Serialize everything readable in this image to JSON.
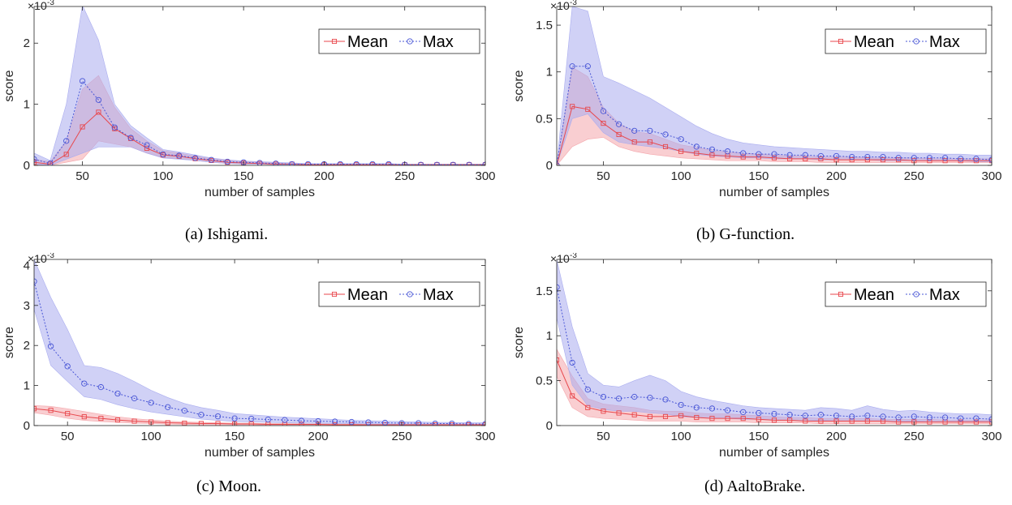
{
  "chart_data": [
    {
      "type": "line",
      "caption": "(a) Ishigami.",
      "xlabel": "number of samples",
      "ylabel": "score",
      "yscale_label": "×10",
      "yscale_exp": "-3",
      "xlim": [
        20,
        300
      ],
      "ylim": [
        0,
        2.6
      ],
      "xticks": [
        50,
        100,
        150,
        200,
        250,
        300
      ],
      "yticks": [
        0,
        1,
        2
      ],
      "ytick_labels": [
        "0",
        "1",
        "2"
      ],
      "legend_position": "top-right",
      "x": [
        20,
        30,
        40,
        50,
        60,
        70,
        80,
        90,
        100,
        110,
        120,
        130,
        140,
        150,
        160,
        170,
        180,
        190,
        200,
        210,
        220,
        230,
        240,
        250,
        260,
        270,
        280,
        290,
        300
      ],
      "series": [
        {
          "name": "Mean",
          "color": "#e8474c",
          "band": "#f4a6ab",
          "marker": "square",
          "dash": "",
          "values": [
            0.05,
            0.02,
            0.18,
            0.63,
            0.87,
            0.6,
            0.44,
            0.28,
            0.17,
            0.15,
            0.11,
            0.08,
            0.05,
            0.04,
            0.03,
            0.02,
            0.02,
            0.01,
            0.01,
            0.01,
            0.01,
            0.01,
            0.01,
            0.01,
            0.01,
            0.01,
            0.01,
            0.01,
            0.01
          ],
          "lower": [
            0.01,
            0.0,
            0.05,
            0.1,
            0.4,
            0.35,
            0.3,
            0.2,
            0.13,
            0.11,
            0.08,
            0.05,
            0.03,
            0.02,
            0.02,
            0.01,
            0.01,
            0.0,
            0.0,
            0.0,
            0.0,
            0.0,
            0.0,
            0.0,
            0.0,
            0.0,
            0.0,
            0.0,
            0.0
          ],
          "upper": [
            0.1,
            0.06,
            0.4,
            1.25,
            1.47,
            0.95,
            0.6,
            0.4,
            0.24,
            0.2,
            0.15,
            0.11,
            0.08,
            0.06,
            0.05,
            0.04,
            0.03,
            0.02,
            0.02,
            0.02,
            0.02,
            0.02,
            0.02,
            0.02,
            0.02,
            0.02,
            0.02,
            0.02,
            0.02
          ]
        },
        {
          "name": "Max",
          "color": "#4a57d6",
          "band": "#a9acef",
          "marker": "circle",
          "dash": "2,2",
          "values": [
            0.1,
            0.03,
            0.4,
            1.38,
            1.07,
            0.62,
            0.45,
            0.33,
            0.18,
            0.16,
            0.12,
            0.09,
            0.06,
            0.05,
            0.04,
            0.03,
            0.02,
            0.02,
            0.02,
            0.02,
            0.02,
            0.02,
            0.02,
            0.01,
            0.01,
            0.01,
            0.01,
            0.01,
            0.01
          ],
          "lower": [
            0.02,
            0.0,
            0.1,
            0.2,
            0.3,
            0.3,
            0.3,
            0.2,
            0.12,
            0.1,
            0.08,
            0.05,
            0.03,
            0.02,
            0.02,
            0.01,
            0.01,
            0.01,
            0.0,
            0.0,
            0.0,
            0.0,
            0.0,
            0.0,
            0.0,
            0.0,
            0.0,
            0.0,
            0.0
          ],
          "upper": [
            0.2,
            0.08,
            1.0,
            2.62,
            2.05,
            1.0,
            0.65,
            0.45,
            0.26,
            0.22,
            0.17,
            0.12,
            0.09,
            0.07,
            0.06,
            0.05,
            0.04,
            0.03,
            0.03,
            0.03,
            0.03,
            0.03,
            0.03,
            0.02,
            0.02,
            0.02,
            0.02,
            0.02,
            0.02
          ]
        }
      ]
    },
    {
      "type": "line",
      "caption": "(b) G-function.",
      "xlabel": "number of samples",
      "ylabel": "score",
      "yscale_label": "×10",
      "yscale_exp": "-3",
      "xlim": [
        20,
        300
      ],
      "ylim": [
        0,
        1.7
      ],
      "xticks": [
        50,
        100,
        150,
        200,
        250,
        300
      ],
      "yticks": [
        0,
        0.5,
        1,
        1.5
      ],
      "ytick_labels": [
        "0",
        "0.5",
        "1",
        "1.5"
      ],
      "legend_position": "top-right",
      "x": [
        20,
        30,
        40,
        50,
        60,
        70,
        80,
        90,
        100,
        110,
        120,
        130,
        140,
        150,
        160,
        170,
        180,
        190,
        200,
        210,
        220,
        230,
        240,
        250,
        260,
        270,
        280,
        290,
        300
      ],
      "series": [
        {
          "name": "Mean",
          "color": "#e8474c",
          "band": "#f4a6ab",
          "marker": "square",
          "dash": "",
          "values": [
            0.0,
            0.63,
            0.6,
            0.45,
            0.33,
            0.25,
            0.25,
            0.2,
            0.15,
            0.13,
            0.11,
            0.1,
            0.09,
            0.09,
            0.08,
            0.07,
            0.07,
            0.07,
            0.06,
            0.06,
            0.06,
            0.06,
            0.06,
            0.05,
            0.05,
            0.05,
            0.05,
            0.05,
            0.05
          ],
          "lower": [
            0.0,
            0.2,
            0.28,
            0.3,
            0.2,
            0.15,
            0.12,
            0.1,
            0.08,
            0.07,
            0.06,
            0.05,
            0.05,
            0.05,
            0.04,
            0.04,
            0.04,
            0.03,
            0.03,
            0.03,
            0.03,
            0.03,
            0.03,
            0.03,
            0.03,
            0.03,
            0.03,
            0.03,
            0.03
          ],
          "upper": [
            0.0,
            1.05,
            0.95,
            0.62,
            0.45,
            0.36,
            0.34,
            0.28,
            0.22,
            0.19,
            0.16,
            0.14,
            0.13,
            0.12,
            0.11,
            0.1,
            0.1,
            0.09,
            0.09,
            0.09,
            0.08,
            0.08,
            0.08,
            0.08,
            0.07,
            0.07,
            0.07,
            0.07,
            0.07
          ]
        },
        {
          "name": "Max",
          "color": "#4a57d6",
          "band": "#a9acef",
          "marker": "circle",
          "dash": "2,2",
          "values": [
            0.0,
            1.06,
            1.06,
            0.58,
            0.44,
            0.37,
            0.37,
            0.33,
            0.28,
            0.2,
            0.17,
            0.15,
            0.13,
            0.12,
            0.12,
            0.11,
            0.11,
            0.1,
            0.1,
            0.09,
            0.09,
            0.09,
            0.08,
            0.08,
            0.08,
            0.08,
            0.07,
            0.07,
            0.06
          ],
          "lower": [
            0.0,
            0.5,
            0.55,
            0.35,
            0.25,
            0.22,
            0.2,
            0.18,
            0.15,
            0.12,
            0.1,
            0.09,
            0.08,
            0.08,
            0.07,
            0.07,
            0.07,
            0.06,
            0.06,
            0.06,
            0.06,
            0.05,
            0.05,
            0.05,
            0.05,
            0.05,
            0.05,
            0.04,
            0.04
          ],
          "upper": [
            0.0,
            1.7,
            1.65,
            0.95,
            0.88,
            0.8,
            0.72,
            0.62,
            0.52,
            0.42,
            0.34,
            0.28,
            0.24,
            0.22,
            0.2,
            0.19,
            0.18,
            0.17,
            0.16,
            0.15,
            0.15,
            0.14,
            0.14,
            0.13,
            0.13,
            0.12,
            0.12,
            0.11,
            0.11
          ]
        }
      ]
    },
    {
      "type": "line",
      "caption": "(c) Moon.",
      "xlabel": "number of samples",
      "ylabel": "score",
      "yscale_label": "×10",
      "yscale_exp": "-3",
      "xlim": [
        30,
        300
      ],
      "ylim": [
        0,
        4.15
      ],
      "xticks": [
        50,
        100,
        150,
        200,
        250,
        300
      ],
      "yticks": [
        0,
        1,
        2,
        3,
        4
      ],
      "ytick_labels": [
        "0",
        "1",
        "2",
        "3",
        "4"
      ],
      "legend_position": "top-right",
      "x": [
        30,
        40,
        50,
        60,
        70,
        80,
        90,
        100,
        110,
        120,
        130,
        140,
        150,
        160,
        170,
        180,
        190,
        200,
        210,
        220,
        230,
        240,
        250,
        260,
        270,
        280,
        290,
        300
      ],
      "series": [
        {
          "name": "Mean",
          "color": "#e8474c",
          "band": "#f4a6ab",
          "marker": "square",
          "dash": "",
          "values": [
            0.42,
            0.38,
            0.3,
            0.22,
            0.18,
            0.14,
            0.11,
            0.09,
            0.07,
            0.06,
            0.05,
            0.05,
            0.04,
            0.04,
            0.03,
            0.03,
            0.03,
            0.03,
            0.02,
            0.02,
            0.02,
            0.02,
            0.02,
            0.02,
            0.02,
            0.02,
            0.02,
            0.02
          ],
          "lower": [
            0.32,
            0.26,
            0.18,
            0.13,
            0.1,
            0.08,
            0.06,
            0.05,
            0.04,
            0.03,
            0.02,
            0.02,
            0.02,
            0.02,
            0.01,
            0.01,
            0.01,
            0.01,
            0.01,
            0.01,
            0.01,
            0.01,
            0.01,
            0.01,
            0.01,
            0.01,
            0.01,
            0.01
          ],
          "upper": [
            0.5,
            0.48,
            0.42,
            0.35,
            0.28,
            0.22,
            0.17,
            0.14,
            0.11,
            0.09,
            0.08,
            0.07,
            0.06,
            0.06,
            0.05,
            0.05,
            0.04,
            0.04,
            0.04,
            0.04,
            0.03,
            0.03,
            0.03,
            0.03,
            0.03,
            0.03,
            0.03,
            0.03
          ]
        },
        {
          "name": "Max",
          "color": "#4a57d6",
          "band": "#a9acef",
          "marker": "circle",
          "dash": "2,2",
          "values": [
            3.6,
            1.98,
            1.48,
            1.05,
            0.96,
            0.8,
            0.68,
            0.57,
            0.46,
            0.37,
            0.27,
            0.23,
            0.18,
            0.17,
            0.15,
            0.14,
            0.12,
            0.11,
            0.1,
            0.09,
            0.08,
            0.07,
            0.06,
            0.06,
            0.05,
            0.05,
            0.04,
            0.04
          ],
          "lower": [
            2.9,
            1.5,
            1.1,
            0.72,
            0.65,
            0.52,
            0.42,
            0.34,
            0.28,
            0.22,
            0.16,
            0.13,
            0.1,
            0.09,
            0.08,
            0.07,
            0.06,
            0.06,
            0.05,
            0.05,
            0.04,
            0.04,
            0.03,
            0.03,
            0.03,
            0.03,
            0.02,
            0.02
          ],
          "upper": [
            4.15,
            3.2,
            2.4,
            1.5,
            1.45,
            1.3,
            1.1,
            0.88,
            0.7,
            0.55,
            0.45,
            0.38,
            0.3,
            0.27,
            0.24,
            0.21,
            0.19,
            0.17,
            0.15,
            0.13,
            0.12,
            0.11,
            0.1,
            0.09,
            0.08,
            0.08,
            0.07,
            0.07
          ]
        }
      ]
    },
    {
      "type": "line",
      "caption": "(d) AaltoBrake.",
      "xlabel": "number of samples",
      "ylabel": "score",
      "yscale_label": "×10",
      "yscale_exp": "-3",
      "xlim": [
        20,
        300
      ],
      "ylim": [
        0,
        1.85
      ],
      "xticks": [
        50,
        100,
        150,
        200,
        250,
        300
      ],
      "yticks": [
        0,
        0.5,
        1,
        1.5
      ],
      "ytick_labels": [
        "0",
        "0.5",
        "1",
        "1.5"
      ],
      "legend_position": "top-right",
      "x": [
        20,
        30,
        40,
        50,
        60,
        70,
        80,
        90,
        100,
        110,
        120,
        130,
        140,
        150,
        160,
        170,
        180,
        190,
        200,
        210,
        220,
        230,
        240,
        250,
        260,
        270,
        280,
        290,
        300
      ],
      "series": [
        {
          "name": "Mean",
          "color": "#e8474c",
          "band": "#f4a6ab",
          "marker": "square",
          "dash": "",
          "values": [
            0.73,
            0.33,
            0.2,
            0.16,
            0.14,
            0.12,
            0.1,
            0.1,
            0.11,
            0.09,
            0.08,
            0.08,
            0.08,
            0.07,
            0.06,
            0.06,
            0.05,
            0.05,
            0.05,
            0.05,
            0.05,
            0.05,
            0.04,
            0.04,
            0.04,
            0.04,
            0.04,
            0.04,
            0.04
          ],
          "lower": [
            0.55,
            0.2,
            0.1,
            0.08,
            0.07,
            0.06,
            0.05,
            0.05,
            0.05,
            0.04,
            0.04,
            0.04,
            0.04,
            0.03,
            0.03,
            0.03,
            0.03,
            0.02,
            0.02,
            0.02,
            0.02,
            0.02,
            0.02,
            0.02,
            0.02,
            0.02,
            0.02,
            0.02,
            0.02
          ],
          "upper": [
            0.85,
            0.55,
            0.3,
            0.24,
            0.22,
            0.2,
            0.17,
            0.16,
            0.16,
            0.14,
            0.13,
            0.13,
            0.12,
            0.11,
            0.1,
            0.09,
            0.09,
            0.08,
            0.08,
            0.08,
            0.08,
            0.07,
            0.07,
            0.07,
            0.07,
            0.06,
            0.06,
            0.06,
            0.06
          ]
        },
        {
          "name": "Max",
          "color": "#4a57d6",
          "band": "#a9acef",
          "marker": "circle",
          "dash": "2,2",
          "values": [
            1.54,
            0.7,
            0.4,
            0.32,
            0.3,
            0.32,
            0.31,
            0.29,
            0.23,
            0.2,
            0.19,
            0.17,
            0.15,
            0.14,
            0.13,
            0.12,
            0.11,
            0.12,
            0.11,
            0.1,
            0.11,
            0.1,
            0.09,
            0.1,
            0.09,
            0.09,
            0.08,
            0.08,
            0.07
          ],
          "lower": [
            1.2,
            0.45,
            0.22,
            0.18,
            0.16,
            0.16,
            0.14,
            0.13,
            0.1,
            0.09,
            0.08,
            0.08,
            0.07,
            0.07,
            0.06,
            0.06,
            0.05,
            0.06,
            0.05,
            0.05,
            0.05,
            0.05,
            0.04,
            0.05,
            0.04,
            0.04,
            0.04,
            0.04,
            0.04
          ],
          "upper": [
            1.85,
            1.1,
            0.58,
            0.45,
            0.43,
            0.5,
            0.56,
            0.5,
            0.38,
            0.32,
            0.28,
            0.25,
            0.22,
            0.2,
            0.19,
            0.18,
            0.17,
            0.2,
            0.19,
            0.17,
            0.22,
            0.18,
            0.16,
            0.17,
            0.15,
            0.14,
            0.13,
            0.13,
            0.12
          ]
        }
      ]
    }
  ]
}
